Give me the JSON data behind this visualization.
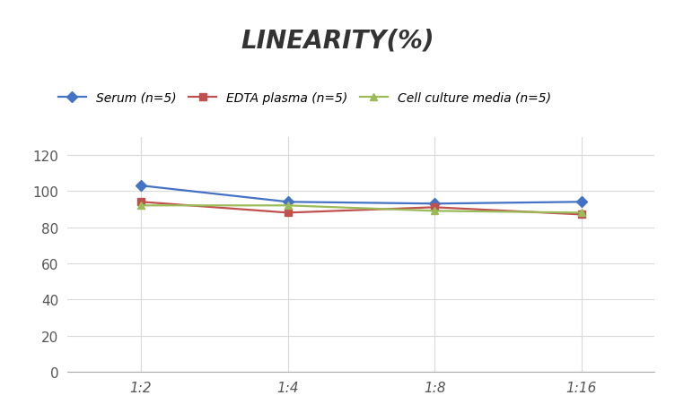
{
  "title": "LINEARITY(%)",
  "x_labels": [
    "1:2",
    "1:4",
    "1:8",
    "1:16"
  ],
  "x_positions": [
    0,
    1,
    2,
    3
  ],
  "series": [
    {
      "label": "Serum (n=5)",
      "values": [
        103,
        94,
        93,
        94
      ],
      "color": "#4472C4",
      "marker": "D",
      "linewidth": 1.6
    },
    {
      "label": "EDTA plasma (n=5)",
      "values": [
        94,
        88,
        91,
        87
      ],
      "color": "#C0504D",
      "marker": "s",
      "linewidth": 1.6
    },
    {
      "label": "Cell culture media (n=5)",
      "values": [
        92,
        92,
        89,
        88
      ],
      "color": "#9BBB59",
      "marker": "^",
      "linewidth": 1.6
    }
  ],
  "ylim": [
    0,
    130
  ],
  "yticks": [
    0,
    20,
    40,
    60,
    80,
    100,
    120
  ],
  "grid_color": "#D9D9D9",
  "background_color": "#FFFFFF",
  "title_fontsize": 20,
  "legend_fontsize": 10,
  "tick_fontsize": 11
}
